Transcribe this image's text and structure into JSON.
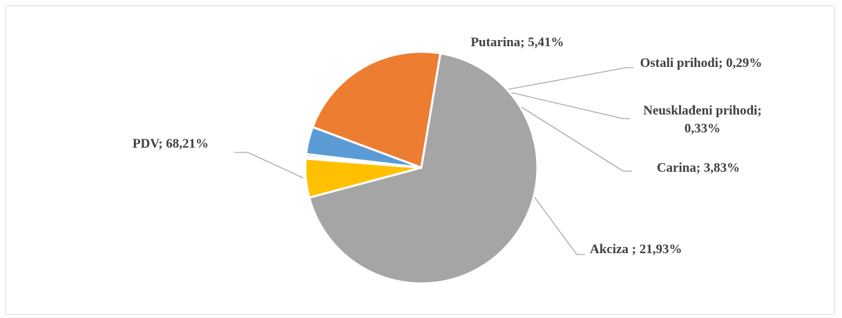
{
  "chart_data": {
    "type": "pie",
    "title": "",
    "categories": [
      "Akciza",
      "PDV",
      "Putarina",
      "Ostali prihodi",
      "Neusklađeni prihodi",
      "Carina"
    ],
    "values": [
      21.93,
      68.21,
      5.41,
      0.29,
      0.33,
      3.83
    ],
    "unit": "%",
    "colors": [
      "#ED7D31",
      "#A5A5A5",
      "#FFC000",
      "#5B9BD5",
      "#4472C4",
      "#5B9BD5"
    ],
    "labels": [
      [
        "Akciza ; 21,93%"
      ],
      [
        "PDV; 68,21%"
      ],
      [
        "Putarina; 5,41%"
      ],
      [
        "Ostali prihodi; 0,29%"
      ],
      [
        "Neusklađeni prihodi;",
        "0,33%"
      ],
      [
        "Carina; 3,83%"
      ]
    ],
    "legend": "none",
    "data_labels": "outside with leader lines"
  }
}
